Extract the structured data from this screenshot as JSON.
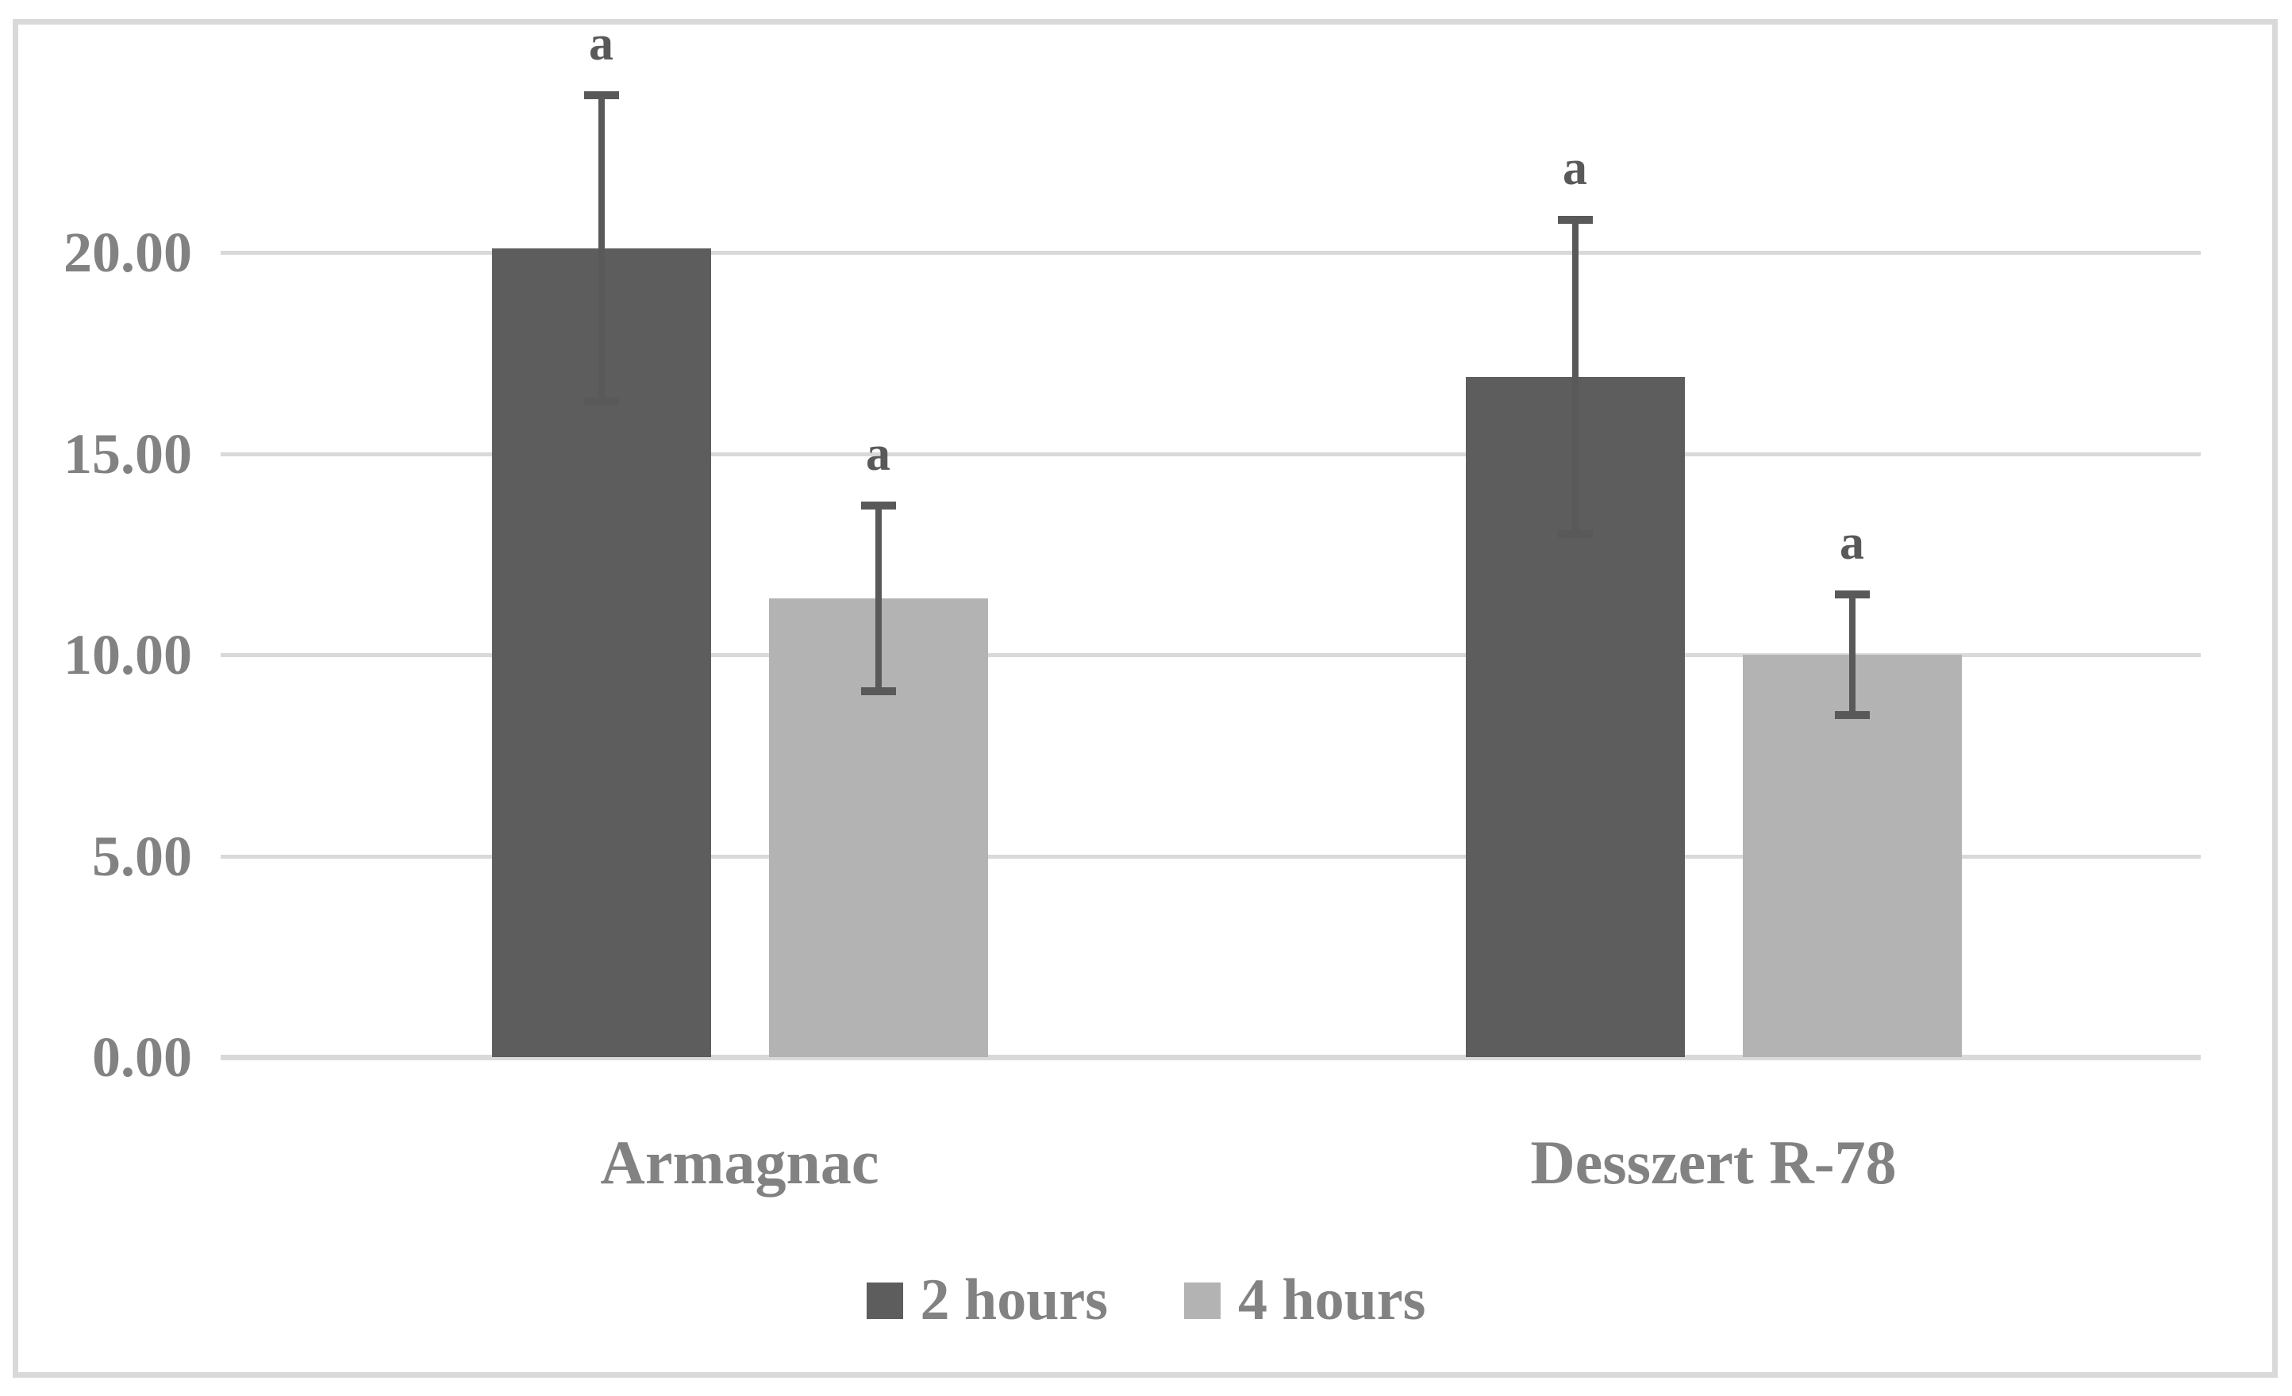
{
  "chart_data": {
    "type": "bar",
    "categories": [
      "Armagnac",
      "Desszert R-78"
    ],
    "series": [
      {
        "name": "2 hours",
        "color": "#5d5d5d",
        "values": [
          20.1,
          16.9
        ],
        "error_bars": [
          3.8,
          3.9
        ],
        "point_labels": [
          "a",
          "a"
        ]
      },
      {
        "name": "4 hours",
        "color": "#b3b3b3",
        "values": [
          11.4,
          10.0
        ],
        "error_bars": [
          2.3,
          1.5
        ],
        "point_labels": [
          "a",
          "a"
        ]
      }
    ],
    "y_axis": {
      "min": 0,
      "max": 20,
      "step": 5,
      "tick_labels": [
        "0.00",
        "5.00",
        "10.00",
        "15.00",
        "20.00"
      ]
    },
    "grid": true,
    "legend_position": "bottom"
  },
  "colors": {
    "background": "#ffffff",
    "border": "#d9d9d9",
    "gridline": "#d9d9d9",
    "axis_text": "#828282",
    "error_bar": "#595959",
    "significance_text": "#595959"
  }
}
